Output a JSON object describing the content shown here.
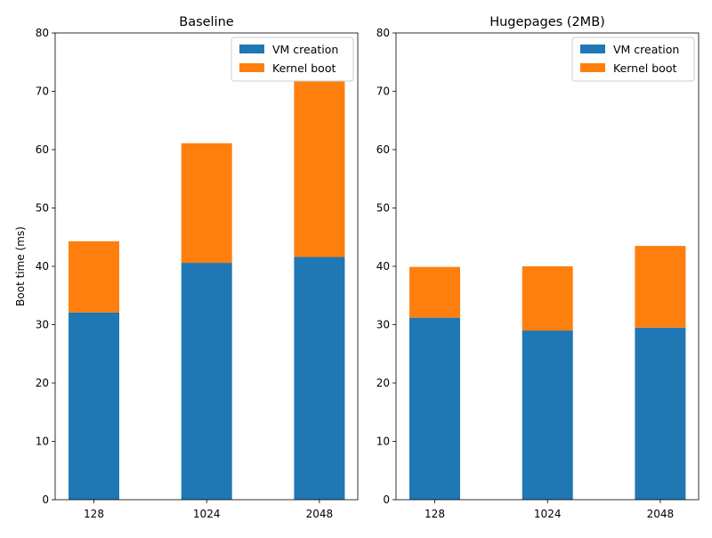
{
  "figure": {
    "ylabel": "Boot time (ms)"
  },
  "chart_data": [
    {
      "type": "bar",
      "stacked": true,
      "title": "Baseline",
      "xlabel": "",
      "ylabel": "Boot time (ms)",
      "categories": [
        "128",
        "1024",
        "2048"
      ],
      "ylim": [
        0,
        80
      ],
      "yticks": [
        0,
        10,
        20,
        30,
        40,
        50,
        60,
        70,
        80
      ],
      "grid": false,
      "legend_position": "top-right",
      "series": [
        {
          "name": "VM creation",
          "color": "#1f77b4",
          "values": [
            32.1,
            40.6,
            41.6
          ]
        },
        {
          "name": "Kernel boot",
          "color": "#ff7f0e",
          "values": [
            12.2,
            20.5,
            30.2
          ]
        }
      ]
    },
    {
      "type": "bar",
      "stacked": true,
      "title": "Hugepages (2MB)",
      "xlabel": "",
      "ylabel": "",
      "categories": [
        "128",
        "1024",
        "2048"
      ],
      "ylim": [
        0,
        80
      ],
      "yticks": [
        0,
        10,
        20,
        30,
        40,
        50,
        60,
        70,
        80
      ],
      "grid": false,
      "legend_position": "top-right",
      "series": [
        {
          "name": "VM creation",
          "color": "#1f77b4",
          "values": [
            31.2,
            29.0,
            29.5
          ]
        },
        {
          "name": "Kernel boot",
          "color": "#ff7f0e",
          "values": [
            8.7,
            11.0,
            14.0
          ]
        }
      ]
    }
  ]
}
